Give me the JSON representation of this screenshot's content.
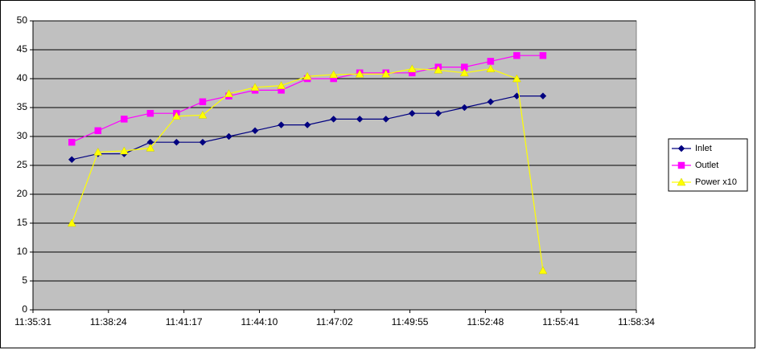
{
  "chart_data": {
    "type": "line",
    "x": [
      "11:37:00",
      "11:38:00",
      "11:39:00",
      "11:40:00",
      "11:41:00",
      "11:42:00",
      "11:43:00",
      "11:44:00",
      "11:45:00",
      "11:46:00",
      "11:47:00",
      "11:48:00",
      "11:49:00",
      "11:50:00",
      "11:51:00",
      "11:52:00",
      "11:53:00",
      "11:54:00",
      "11:55:00"
    ],
    "series": [
      {
        "name": "Inlet",
        "color": "#000080",
        "marker": "diamond",
        "values": [
          26,
          27,
          27,
          29,
          29,
          29,
          30,
          31,
          32,
          32,
          33,
          33,
          33,
          34,
          34,
          35,
          36,
          37,
          37
        ]
      },
      {
        "name": "Outlet",
        "color": "#FF00FF",
        "marker": "square",
        "values": [
          29,
          31,
          33,
          34,
          34,
          36,
          37,
          38,
          38,
          40,
          40,
          41,
          41,
          41,
          42,
          42,
          43,
          44,
          44
        ]
      },
      {
        "name": "Power x10",
        "color": "#FFFF00",
        "marker": "triangle",
        "values": [
          15,
          27.3,
          27.5,
          28,
          33.5,
          33.7,
          37.4,
          38.5,
          38.8,
          40.4,
          40.7,
          40.8,
          40.8,
          41.7,
          41.5,
          41,
          41.7,
          40,
          6.8
        ]
      }
    ],
    "xlim": [
      "11:35:31",
      "11:58:34"
    ],
    "xticks": [
      "11:35:31",
      "11:38:24",
      "11:41:17",
      "11:44:10",
      "11:47:02",
      "11:49:55",
      "11:52:48",
      "11:55:41",
      "11:58:34"
    ],
    "ylim": [
      0,
      50
    ],
    "yticks": [
      0,
      5,
      10,
      15,
      20,
      25,
      30,
      35,
      40,
      45,
      50
    ],
    "grid": true,
    "legend": "right"
  }
}
